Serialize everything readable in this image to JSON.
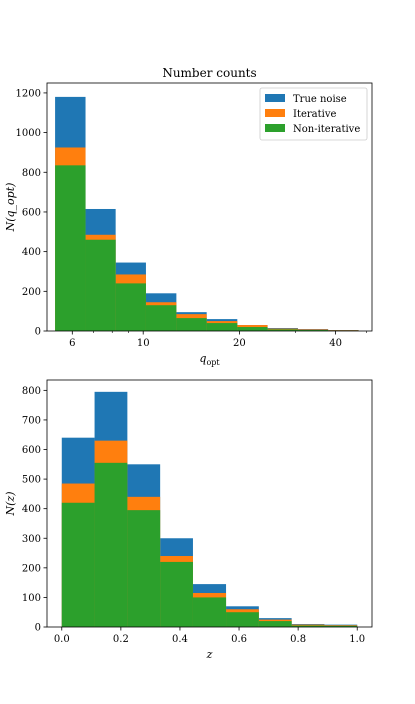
{
  "chart_data": [
    {
      "type": "bar",
      "title": "Number counts",
      "xlabel": "q_opt",
      "ylabel": "N(q_opt)",
      "xscale": "log",
      "xlim": [
        5.0,
        52.0
      ],
      "ylim": [
        0,
        1250
      ],
      "xticks": [
        6,
        10,
        20,
        40
      ],
      "yticks": [
        0,
        200,
        400,
        600,
        800,
        1000,
        1200
      ],
      "bin_edges": [
        5.3,
        6.6,
        8.2,
        10.2,
        12.7,
        15.8,
        19.7,
        24.5,
        30.5,
        37.9,
        47.2
      ],
      "legend": "top-right",
      "series": [
        {
          "name": "True noise",
          "color": "#1f77b4",
          "values": [
            1180,
            615,
            345,
            190,
            95,
            60,
            30,
            15,
            10,
            5
          ]
        },
        {
          "name": "Iterative",
          "color": "#ff7f0e",
          "values": [
            925,
            485,
            285,
            145,
            85,
            50,
            30,
            12,
            8,
            4
          ]
        },
        {
          "name": "Non-iterative",
          "color": "#2ca02c",
          "values": [
            835,
            460,
            240,
            130,
            65,
            40,
            20,
            8,
            5,
            2
          ]
        }
      ]
    },
    {
      "type": "bar",
      "title": "",
      "xlabel": "z",
      "ylabel": "N(z)",
      "xlim": [
        -0.05,
        1.05
      ],
      "ylim": [
        0,
        835
      ],
      "xticks": [
        0.0,
        0.2,
        0.4,
        0.6,
        0.8,
        1.0
      ],
      "yticks": [
        0,
        100,
        200,
        300,
        400,
        500,
        600,
        700,
        800
      ],
      "bin_edges": [
        0.0,
        0.111,
        0.222,
        0.333,
        0.444,
        0.556,
        0.667,
        0.778,
        0.889,
        1.0
      ],
      "series": [
        {
          "name": "True noise",
          "color": "#1f77b4",
          "values": [
            640,
            795,
            550,
            300,
            145,
            70,
            30,
            10,
            8
          ]
        },
        {
          "name": "Iterative",
          "color": "#ff7f0e",
          "values": [
            485,
            630,
            440,
            240,
            115,
            60,
            25,
            8,
            6
          ]
        },
        {
          "name": "Non-iterative",
          "color": "#2ca02c",
          "values": [
            420,
            555,
            395,
            220,
            100,
            50,
            20,
            5,
            4
          ]
        }
      ]
    }
  ]
}
